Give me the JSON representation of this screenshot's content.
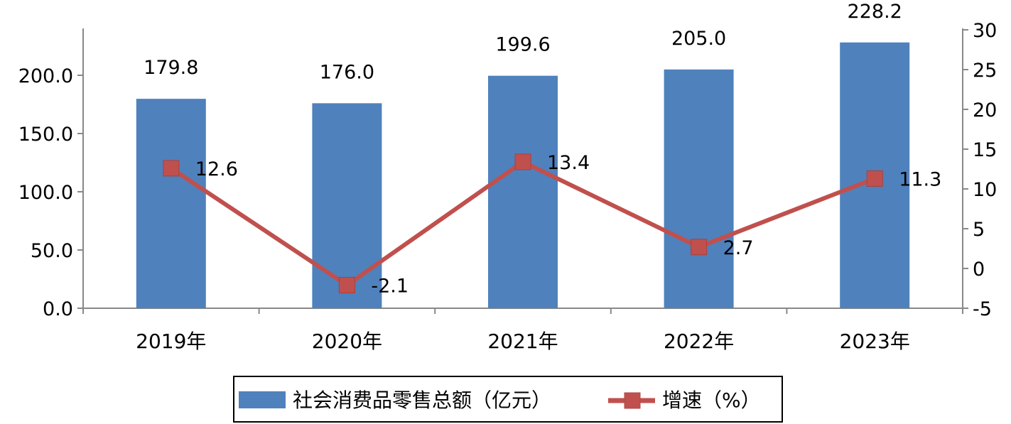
{
  "chart_data": {
    "type": "bar",
    "categories": [
      "2019年",
      "2020年",
      "2021年",
      "2022年",
      "2023年"
    ],
    "series": [
      {
        "name": "社会消费品零售总额（亿元）",
        "type": "bar",
        "axis": "left",
        "color": "#4f81bd",
        "values": [
          179.8,
          176.0,
          199.6,
          205.0,
          228.2
        ],
        "labels": [
          "179.8",
          "176.0",
          "199.6",
          "205.0",
          "228.2"
        ]
      },
      {
        "name": "增速（%）",
        "type": "line",
        "axis": "right",
        "color": "#c0504d",
        "values": [
          12.6,
          -2.1,
          13.4,
          2.7,
          11.3
        ],
        "labels": [
          "12.6",
          "-2.1",
          "13.4",
          "2.7",
          "11.3"
        ]
      }
    ],
    "y_left": {
      "ylim": [
        0,
        240
      ],
      "ticks": [
        "0.0",
        "50.0",
        "100.0",
        "150.0",
        "200.0"
      ]
    },
    "y_right": {
      "ylim": [
        -5,
        30
      ],
      "ticks": [
        "-5",
        "0",
        "5",
        "10",
        "15",
        "20",
        "25",
        "30"
      ]
    },
    "legend": "bottom",
    "grid": false
  }
}
